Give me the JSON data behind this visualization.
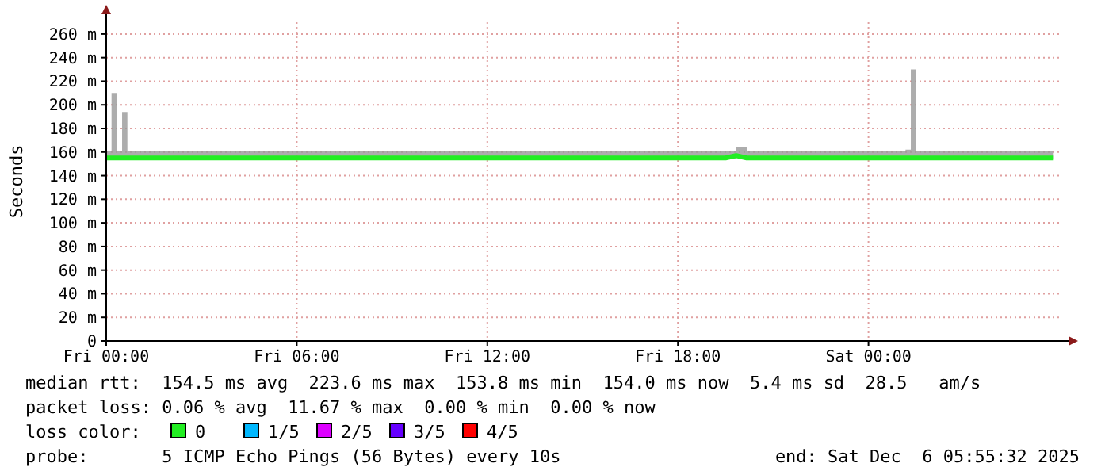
{
  "chart_data": {
    "type": "line",
    "ylabel": "Seconds",
    "legend_title": "loss color:",
    "legend": "bottom",
    "grid": true,
    "marker": "none",
    "line_style": "solid",
    "x": [
      "2025-12-05T00:00",
      "2025-12-05T00:10",
      "2025-12-05T00:20",
      "2025-12-05T00:30",
      "2025-12-05T00:40",
      "2025-12-05T02:00",
      "2025-12-05T04:00",
      "2025-12-05T06:00",
      "2025-12-05T08:00",
      "2025-12-05T10:00",
      "2025-12-05T12:00",
      "2025-12-05T14:00",
      "2025-12-05T16:00",
      "2025-12-05T18:00",
      "2025-12-05T19:30",
      "2025-12-05T19:50",
      "2025-12-05T20:10",
      "2025-12-05T22:00",
      "2025-12-06T00:00",
      "2025-12-06T01:10",
      "2025-12-06T01:20",
      "2025-12-06T01:30",
      "2025-12-06T01:40",
      "2025-12-06T03:00",
      "2025-12-06T04:30",
      "2025-12-06T05:50"
    ],
    "xlim": [
      "2025-12-05T00:00",
      "2025-12-06T06:00"
    ],
    "xticks": [
      {
        "value": "2025-12-05T00:00",
        "label": "Fri 00:00"
      },
      {
        "value": "2025-12-05T06:00",
        "label": "Fri 06:00"
      },
      {
        "value": "2025-12-05T12:00",
        "label": "Fri 12:00"
      },
      {
        "value": "2025-12-05T18:00",
        "label": "Fri 18:00"
      },
      {
        "value": "2025-12-06T00:00",
        "label": "Sat 00:00"
      }
    ],
    "ylim": [
      0,
      270
    ],
    "yticks": [
      0,
      {
        "value": 20,
        "label": "20 m"
      },
      {
        "value": 40,
        "label": "40 m"
      },
      {
        "value": 60,
        "label": "60 m"
      },
      {
        "value": 80,
        "label": "80 m"
      },
      {
        "value": 100,
        "label": "100 m"
      },
      {
        "value": 120,
        "label": "120 m"
      },
      {
        "value": 140,
        "label": "140 m"
      },
      {
        "value": 160,
        "label": "160 m"
      },
      {
        "value": 180,
        "label": "180 m"
      },
      {
        "value": 200,
        "label": "200 m"
      },
      {
        "value": 220,
        "label": "220 m"
      },
      {
        "value": 240,
        "label": "240 m"
      },
      {
        "value": 260,
        "label": "260 m"
      }
    ],
    "series": [
      {
        "name": "0",
        "color": "#22ee22",
        "values": [
          155,
          155,
          155,
          155,
          155,
          155,
          155,
          155,
          155,
          155,
          155,
          155,
          155,
          155,
          155,
          157,
          155,
          155,
          155,
          155,
          155,
          155,
          155,
          155,
          155,
          155
        ],
        "lower": [
          154,
          154,
          154,
          154,
          154,
          154,
          154,
          154,
          154,
          154,
          154,
          154,
          154,
          154,
          154,
          155,
          154,
          154,
          154,
          154,
          154,
          154,
          154,
          154,
          154,
          154
        ],
        "upper": [
          161,
          210,
          161,
          194,
          161,
          161,
          161,
          161,
          161,
          161,
          161,
          161,
          161,
          161,
          161,
          164,
          161,
          161,
          161,
          162,
          230,
          161,
          161,
          161,
          161,
          161
        ]
      },
      {
        "name": "1/5",
        "color": "#00b8ff",
        "values": [
          null,
          null,
          null,
          null,
          null,
          null,
          null,
          null,
          null,
          null,
          null,
          null,
          null,
          null,
          null,
          null,
          null,
          null,
          null,
          null,
          null,
          null,
          null,
          null,
          null,
          null
        ]
      },
      {
        "name": "2/5",
        "color": "#dd00ff",
        "values": [
          null,
          null,
          null,
          null,
          null,
          null,
          null,
          null,
          null,
          null,
          null,
          null,
          null,
          null,
          null,
          null,
          null,
          null,
          null,
          null,
          null,
          null,
          null,
          null,
          null,
          null
        ]
      },
      {
        "name": "3/5",
        "color": "#6600ff",
        "values": [
          null,
          null,
          null,
          null,
          null,
          null,
          null,
          null,
          null,
          null,
          null,
          null,
          null,
          null,
          null,
          null,
          null,
          null,
          null,
          null,
          null,
          null,
          null,
          null,
          null,
          null
        ]
      },
      {
        "name": "4/5",
        "color": "#ff0000",
        "values": [
          null,
          null,
          null,
          null,
          null,
          null,
          null,
          null,
          null,
          null,
          null,
          null,
          null,
          null,
          null,
          null,
          null,
          null,
          null,
          null,
          null,
          null,
          null,
          null,
          null,
          null
        ]
      }
    ],
    "annotations": [
      "median rtt:  154.5 ms avg  223.6 ms max  153.8 ms min  154.0 ms now  5.4 ms sd  28.5   am/s",
      "packet loss: 0.06 % avg  11.67 % max  0.00 % min  0.00 % now",
      "probe:       5 ICMP Echo Pings (56 Bytes) every 10s",
      "end: Sat Dec  6 05:55:32 2025"
    ]
  }
}
